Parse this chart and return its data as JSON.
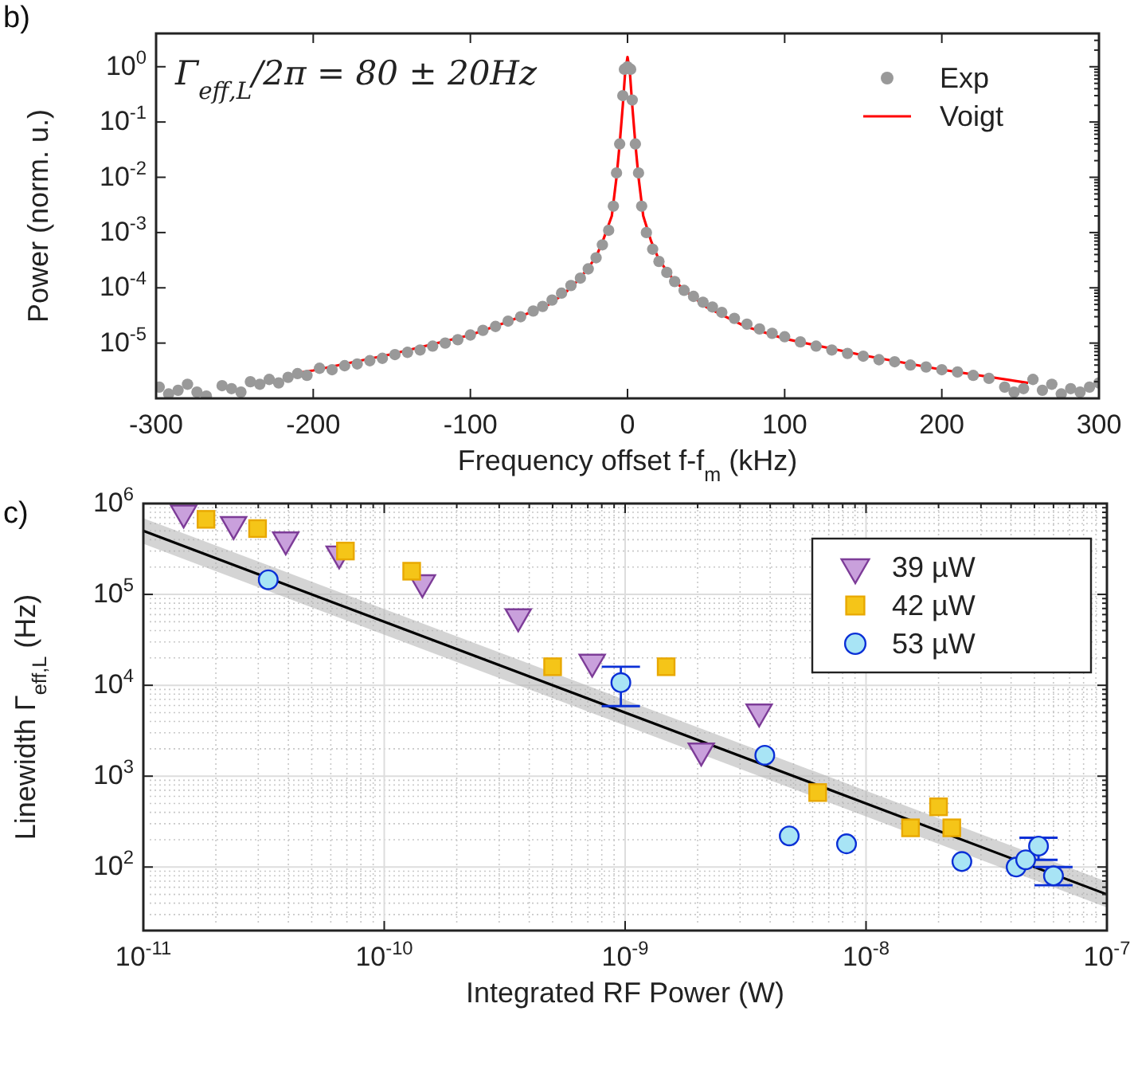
{
  "chart_data": [
    {
      "type": "scatter",
      "title": "b)",
      "xlabel": "Frequency offset f-f$_{m}$ (kHz)",
      "ylabel": "Power (norm. u.)",
      "annotations": [
        "Γ$_{eff,L}$/2π = 80 ± 20Hz"
      ],
      "log": "y",
      "grid": false,
      "legend": "top right",
      "xlim": [
        -300,
        300
      ],
      "xticks": [
        -300,
        -200,
        -100,
        0,
        100,
        200,
        300
      ],
      "ylim": [
        1e-06,
        4
      ],
      "yticks": [
        {
          "value": 1e-05,
          "label": "10$^{-5}$"
        },
        {
          "value": 0.0001,
          "label": "10$^{-4}$"
        },
        {
          "value": 0.001,
          "label": "10$^{-3}$"
        },
        {
          "value": 0.01,
          "label": "10$^{-2}$"
        },
        {
          "value": 0.1,
          "label": "10$^{-1}$"
        },
        {
          "value": 1,
          "label": "10$^{0}$"
        }
      ],
      "series": [
        {
          "name": "Exp",
          "type": "scatter",
          "marker": "circle",
          "color": "#999999",
          "x": [
            -298,
            -292,
            -286,
            -280,
            -274,
            -268,
            -258,
            -252,
            -246,
            -240,
            -234,
            -228,
            -222,
            -216,
            -210,
            -204,
            -196,
            -188,
            -180,
            -172,
            -164,
            -156,
            -148,
            -140,
            -132,
            -124,
            -116,
            -108,
            -100,
            -92,
            -84,
            -76,
            -68,
            -60,
            -54,
            -48,
            -42,
            -36,
            -30,
            -25,
            -20,
            -16,
            -12,
            -9,
            -7,
            -5,
            -3,
            -2,
            0,
            2,
            3,
            5,
            7,
            9,
            12,
            16,
            20,
            25,
            30,
            36,
            42,
            48,
            54,
            60,
            68,
            76,
            84,
            92,
            100,
            110,
            120,
            130,
            140,
            150,
            160,
            170,
            180,
            190,
            200,
            210,
            220,
            230,
            240,
            246,
            252,
            258,
            264,
            270,
            276,
            282,
            288,
            294,
            300
          ],
          "values": [
            1.6e-06,
            1.2e-06,
            1.4e-06,
            1.8e-06,
            1.3e-06,
            1.1e-06,
            1.7e-06,
            1.5e-06,
            1.3e-06,
            2e-06,
            1.8e-06,
            2.2e-06,
            1.9e-06,
            2.4e-06,
            2.8e-06,
            2.6e-06,
            3.5e-06,
            3.3e-06,
            3.9e-06,
            4.2e-06,
            4.8e-06,
            5.3e-06,
            6.2e-06,
            6.8e-06,
            7.5e-06,
            8.8e-06,
            1e-05,
            1.15e-05,
            1.4e-05,
            1.7e-05,
            2e-05,
            2.5e-05,
            3e-05,
            3.8e-05,
            4.6e-05,
            6e-05,
            8e-05,
            0.00011,
            0.00015,
            0.00022,
            0.00035,
            0.0006,
            0.0011,
            0.003,
            0.012,
            0.04,
            0.3,
            0.9,
            1,
            0.9,
            0.25,
            0.04,
            0.012,
            0.003,
            0.001,
            0.0005,
            0.0003,
            0.00019,
            0.00013,
            9e-05,
            7e-05,
            5.5e-05,
            4.5e-05,
            3.6e-05,
            2.8e-05,
            2.2e-05,
            1.8e-05,
            1.5e-05,
            1.3e-05,
            1.05e-05,
            8.8e-06,
            7.5e-06,
            6.5e-06,
            5.8e-06,
            5e-06,
            4.6e-06,
            4e-06,
            3.7e-06,
            3.3e-06,
            3e-06,
            2.6e-06,
            2.3e-06,
            1.6e-06,
            1.3e-06,
            1.5e-06,
            2.2e-06,
            1.4e-06,
            1.8e-06,
            1.2e-06,
            1.5e-06,
            1.3e-06,
            1.6e-06,
            1.9e-06
          ]
        },
        {
          "name": "Voigt",
          "type": "line",
          "marker": "none",
          "color": "#ff0000",
          "x": [
            -213,
            -200,
            -150,
            -100,
            -75,
            -50,
            -40,
            -30,
            -20,
            -15,
            -10,
            -7,
            -5,
            -3,
            -1.5,
            0,
            1.5,
            3,
            5,
            7,
            10,
            15,
            20,
            30,
            40,
            50,
            75,
            100,
            150,
            200,
            255
          ],
          "values": [
            2.8e-06,
            3.2e-06,
            6.3e-06,
            1.4e-05,
            2.5e-05,
            5e-05,
            8e-05,
            0.00015,
            0.00036,
            0.0008,
            0.002,
            0.01,
            0.04,
            0.2,
            0.8,
            1.5,
            0.8,
            0.2,
            0.04,
            0.01,
            0.002,
            0.0007,
            0.00032,
            0.00013,
            7.5e-05,
            4.5e-05,
            2e-05,
            1.2e-05,
            6e-06,
            3.3e-06,
            1.9e-06
          ]
        }
      ]
    },
    {
      "type": "scatter",
      "title": "c)",
      "xlabel": "Integrated RF Power (W)",
      "ylabel": "Linewidth   Γ$_{eff,L}$  (Hz)",
      "log": "xy",
      "grid": true,
      "legend": "top right",
      "xlim": [
        1e-11,
        1e-07
      ],
      "xticks": [
        {
          "value": 1e-11,
          "label": "10$^{-11}$"
        },
        {
          "value": 1e-10,
          "label": "10$^{-10}$"
        },
        {
          "value": 1e-09,
          "label": "10$^{-9}$"
        },
        {
          "value": 1e-08,
          "label": "10$^{-8}$"
        },
        {
          "value": 1e-07,
          "label": "10$^{-7}$"
        }
      ],
      "ylim": [
        20,
        1000000
      ],
      "yticks": [
        {
          "value": 100,
          "label": "10$^{2}$"
        },
        {
          "value": 1000,
          "label": "10$^{3}$"
        },
        {
          "value": 10000,
          "label": "10$^{4}$"
        },
        {
          "value": 100000,
          "label": "10$^{5}$"
        },
        {
          "value": 1000000,
          "label": "10$^{6}$"
        }
      ],
      "series": [
        {
          "type": "line",
          "marker": "none",
          "color": "#000000",
          "x": [
            1e-11,
            1e-07
          ],
          "values": [
            500000,
            50
          ],
          "lower": [
            360000,
            36
          ],
          "upper": [
            690000,
            69
          ]
        },
        {
          "name": "39 µW",
          "type": "scatter",
          "marker": "triangle",
          "color": "#c9a0dc",
          "x": [
            1.47e-11,
            2.37e-11,
            3.9e-11,
            6.5e-11,
            1.44e-10,
            3.6e-10,
            7.3e-10,
            2.07e-09,
            3.6e-09
          ],
          "values": [
            790000,
            590000,
            400000,
            280000,
            135000,
            57000,
            18000,
            1900,
            5100
          ]
        },
        {
          "name": "42 µW",
          "type": "scatter",
          "marker": "square",
          "color": "#f5c518",
          "x": [
            1.82e-11,
            2.98e-11,
            6.9e-11,
            1.3e-10,
            5e-10,
            1.48e-09,
            6.3e-09,
            1.53e-08,
            2e-08,
            2.27e-08
          ],
          "values": [
            670000,
            530000,
            300000,
            180000,
            16000,
            16000,
            660,
            270,
            460,
            270
          ]
        },
        {
          "name": "53 µW",
          "type": "scatter",
          "marker": "circle",
          "color": "#a8e4f5",
          "x": [
            3.3e-11,
            9.6e-10,
            3.8e-09,
            4.8e-09,
            8.3e-09,
            2.5e-08,
            4.2e-08,
            4.6e-08,
            5.2e-08,
            6e-08
          ],
          "values": [
            145000,
            10700,
            1700,
            220,
            180,
            115,
            100,
            120,
            170,
            80
          ],
          "errors": [
            null,
            [
              5900,
              16000
            ],
            null,
            null,
            null,
            null,
            null,
            null,
            [
              120,
              210
            ],
            [
              63,
              100
            ]
          ]
        }
      ]
    }
  ]
}
